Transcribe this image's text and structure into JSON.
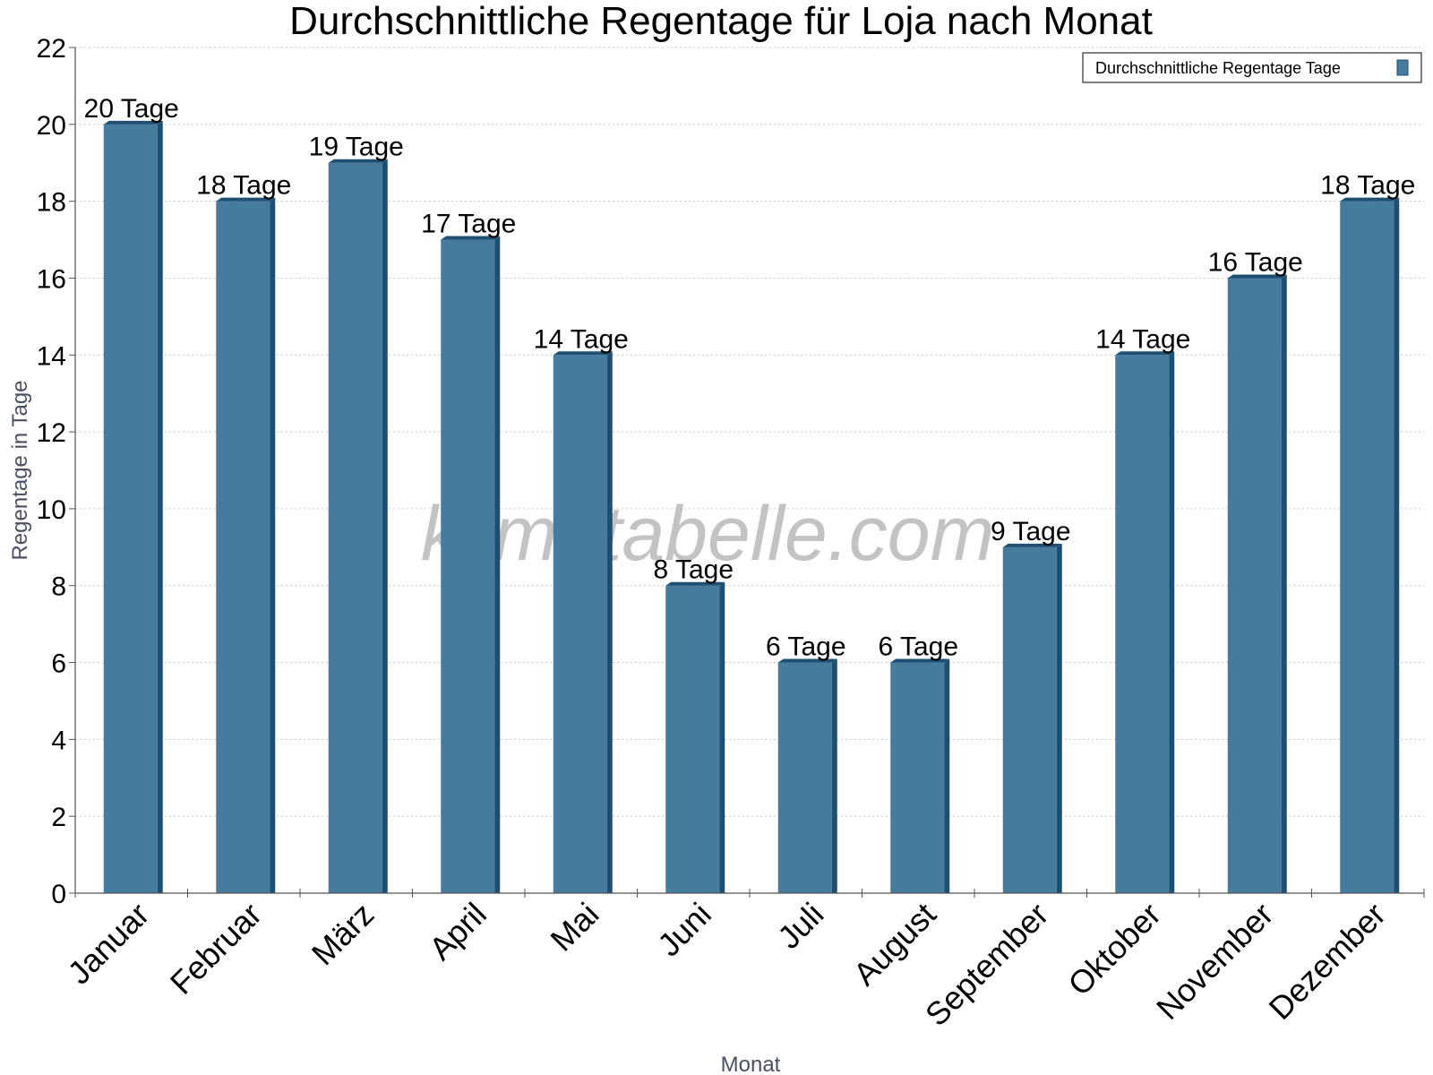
{
  "chart_data": {
    "type": "bar",
    "title": "Durchschnittliche Regentage für Loja nach Monat",
    "xlabel": "Monat",
    "ylabel": "Regentage in Tage",
    "ylim": [
      0,
      22
    ],
    "ytick_step": 2,
    "grid": true,
    "legend_position": "top-right",
    "categories": [
      "Januar",
      "Februar",
      "März",
      "April",
      "Mai",
      "Juni",
      "Juli",
      "August",
      "September",
      "Oktober",
      "November",
      "Dezember"
    ],
    "series": [
      {
        "name": "Durchschnittliche Regentage Tage",
        "values": [
          20,
          18,
          19,
          17,
          14,
          8,
          6,
          6,
          9,
          14,
          16,
          18
        ],
        "labels": [
          "20 Tage",
          "18 Tage",
          "19 Tage",
          "17 Tage",
          "14 Tage",
          "8 Tage",
          "6 Tage",
          "6 Tage",
          "9 Tage",
          "14 Tage",
          "16 Tage",
          "18 Tage"
        ],
        "color": "#467b9e",
        "side_color": "#1d4f73"
      }
    ]
  },
  "watermark": "klimatabelle.com"
}
